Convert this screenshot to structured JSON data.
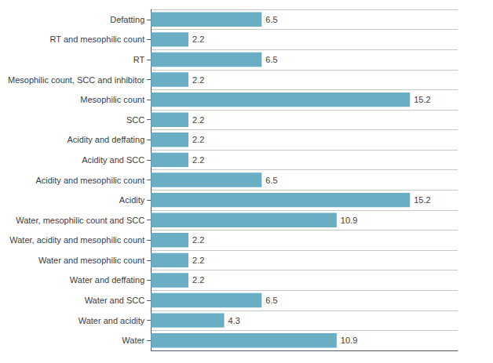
{
  "chart_data": {
    "type": "bar",
    "orientation": "horizontal",
    "categories": [
      "Water",
      "Water and acidity",
      "Water and SCC",
      "Water and deffating",
      "Water and mesophilic count",
      "Water, acidity and mesophilic count",
      "Water, mesophilic count and SCC",
      "Acidity",
      "Acidity and mesophilic count",
      "Acidity and SCC",
      "Acidity and deffating",
      "SCC",
      "Mesophilic count",
      "Mesophilic count, SCC and inhibitor",
      "RT",
      "RT and mesophilic count",
      "Defatting"
    ],
    "values": [
      10.9,
      4.3,
      6.5,
      2.2,
      2.2,
      2.2,
      10.9,
      15.2,
      6.5,
      2.2,
      2.2,
      2.2,
      15.2,
      2.2,
      6.5,
      2.2,
      6.5
    ],
    "color": "#6aaec6",
    "xlim": [
      0,
      18
    ],
    "grid": true,
    "data_labels": true,
    "tick_labels": "y"
  }
}
